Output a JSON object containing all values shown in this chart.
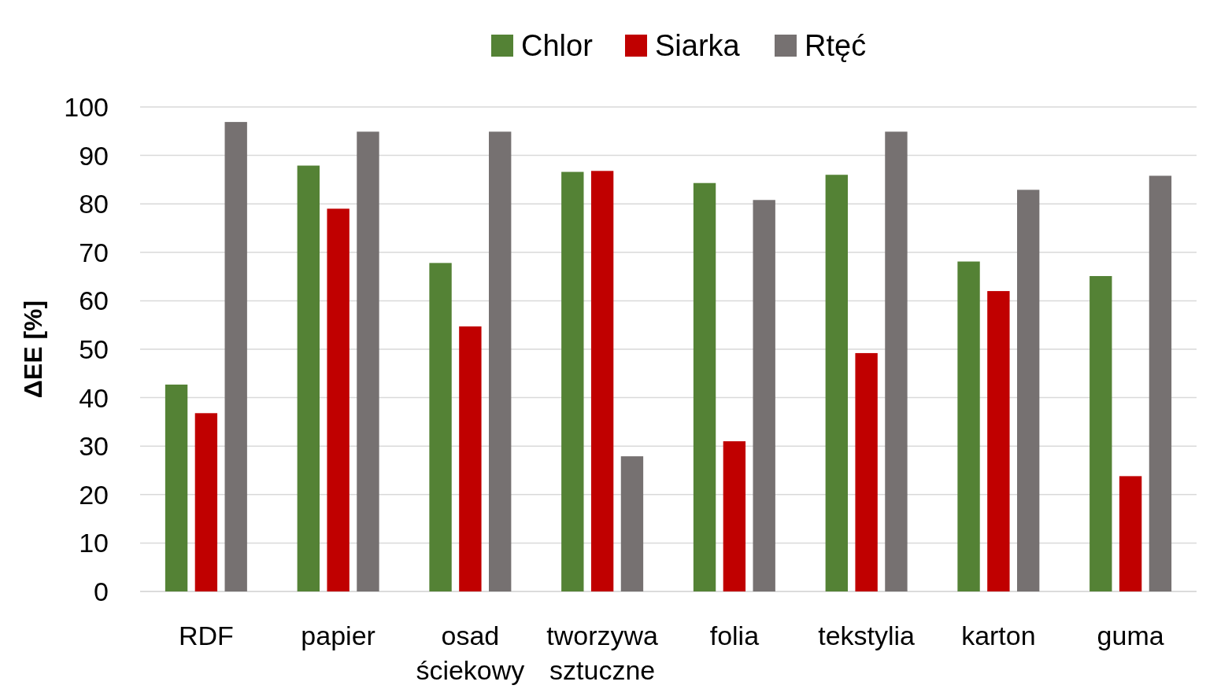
{
  "chart_data": {
    "type": "bar",
    "ylabel": "ΔEE [%]",
    "categories": [
      "RDF",
      "papier",
      "osad ściekowy",
      "tworzywa sztuczne",
      "folia",
      "tekstylia",
      "karton",
      "guma"
    ],
    "series": [
      {
        "name": "Chlor",
        "color": "#548235",
        "values": [
          42.7,
          87.9,
          67.8,
          86.6,
          84.3,
          86,
          68.1,
          65.1
        ]
      },
      {
        "name": "Siarka",
        "color": "#c00000",
        "values": [
          36.8,
          79,
          54.7,
          86.8,
          31,
          49.2,
          62,
          23.8
        ]
      },
      {
        "name": "Rtęć",
        "color": "#767171",
        "values": [
          96.9,
          94.9,
          94.9,
          27.9,
          80.8,
          94.9,
          82.9,
          85.8
        ]
      }
    ],
    "ylim": [
      0,
      100
    ],
    "yticks": [
      0,
      10,
      20,
      30,
      40,
      50,
      60,
      70,
      80,
      90,
      100
    ],
    "grid": "y",
    "legend": "top"
  }
}
